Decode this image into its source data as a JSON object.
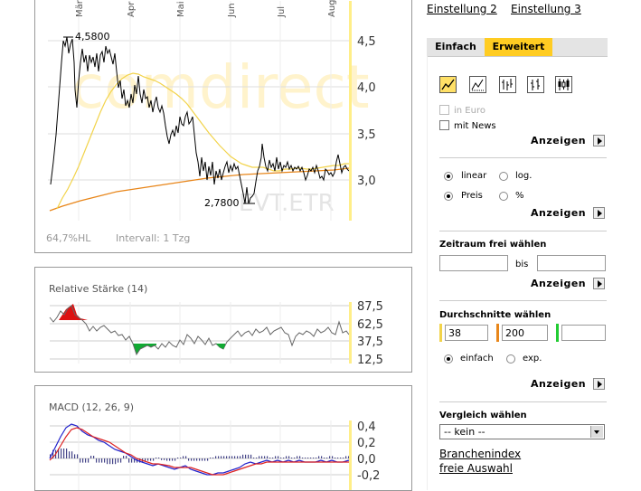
{
  "main_chart": {
    "months": [
      "Mär",
      "Apr",
      "Mai",
      "Jun",
      "Jul",
      "Aug"
    ],
    "y_ticks": [
      "4,5",
      "4,0",
      "3,5",
      "3,0"
    ],
    "max_label": "4,5800",
    "min_label": "2,7800",
    "footer_left": "64,7%HL",
    "footer_mid": "Intervall: 1 Tzg",
    "watermark": "comdirect",
    "ticker": "EVT.ETR",
    "colors": {
      "price": "#000000",
      "avg38": "#f2d34a",
      "avg200": "#e8861a"
    }
  },
  "rsi": {
    "title": "Relative Stärke (14)",
    "y_ticks": [
      "87,5",
      "62,5",
      "37,5",
      "12,5"
    ]
  },
  "macd": {
    "title": "MACD (12, 26, 9)",
    "y_ticks": [
      "0,4",
      "0,2",
      "0,0",
      "-0,2"
    ]
  },
  "sidebar": {
    "link1": "Einstellung 2",
    "link2": "Einstellung 3",
    "tab1": "Einfach",
    "tab2": "Erweitert",
    "in_euro": "in Euro",
    "mit_news": "mit News",
    "anzeigen": "Anzeigen",
    "linear": "linear",
    "log": "log.",
    "preis": "Preis",
    "percent": "%",
    "zeitraum_title": "Zeitraum frei wählen",
    "bis": "bis",
    "durchschnitte_title": "Durchschnitte wählen",
    "avg1": "38",
    "avg2": "200",
    "avg3": "",
    "einfach": "einfach",
    "exp": "exp.",
    "vergleich_title": "Vergleich wählen",
    "vergleich_selected": "-- kein --",
    "branchenindex": "Branchenindex",
    "freie_auswahl": "freie Auswahl"
  }
}
